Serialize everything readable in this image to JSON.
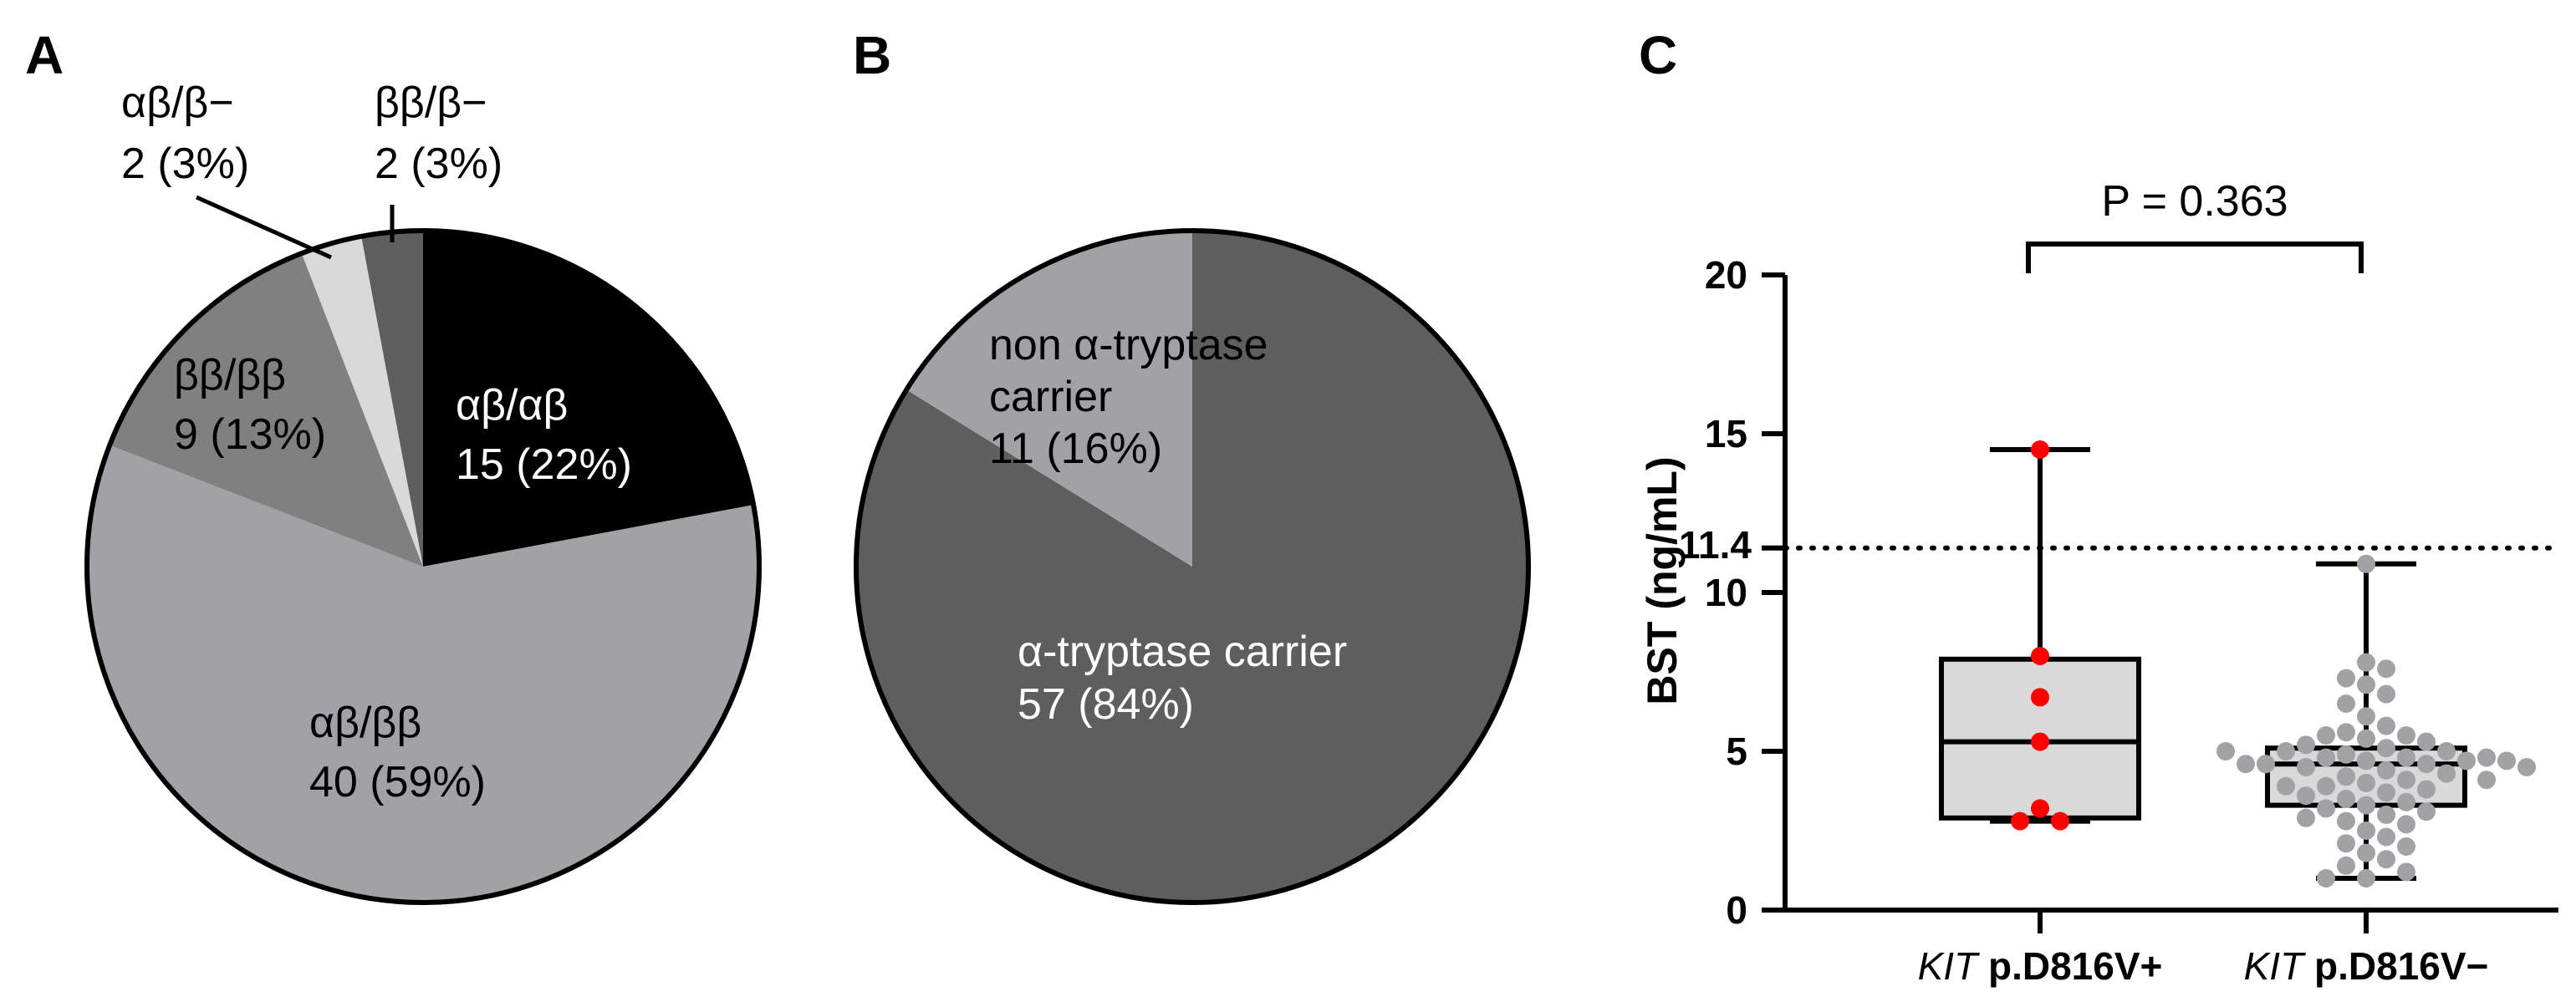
{
  "panels": {
    "a": "A",
    "b": "B",
    "c": "C"
  },
  "chart_data": [
    {
      "type": "pie",
      "panel": "A",
      "slices": [
        {
          "label": "αβ/αβ",
          "count": 15,
          "percent_text": "15 (22%)",
          "color": "#000000",
          "text_color": "#ffffff"
        },
        {
          "label": "αβ/ββ",
          "count": 40,
          "percent_text": "40 (59%)",
          "color": "#a2a2a6",
          "text_color": "#000000"
        },
        {
          "label": "ββ/ββ",
          "count": 9,
          "percent_text": "9 (13%)",
          "color": "#808080",
          "text_color": "#000000"
        },
        {
          "label": "αβ/β−",
          "count": 2,
          "percent_text": "2 (3%)",
          "color": "#d9d9d9",
          "text_color": "#000000"
        },
        {
          "label": "ββ/β−",
          "count": 2,
          "percent_text": "2 (3%)",
          "color": "#5e5e5e",
          "text_color": "#000000"
        }
      ]
    },
    {
      "type": "pie",
      "panel": "B",
      "slices": [
        {
          "label": "α-tryptase carrier",
          "count": 57,
          "percent_text": "57 (84%)",
          "color": "#5e5e5e",
          "text_color": "#ffffff"
        },
        {
          "label": "non α-tryptase carrier",
          "label_lines": [
            "non α-tryptase",
            "carrier"
          ],
          "count": 11,
          "percent_text": "11 (16%)",
          "color": "#a2a2a6",
          "text_color": "#000000"
        }
      ]
    },
    {
      "type": "box",
      "panel": "C",
      "ylabel": "BST (ng/mL)",
      "ylim": [
        0,
        20
      ],
      "yticks": [
        0,
        5,
        10,
        15,
        20
      ],
      "reference_line": {
        "value": 11.4,
        "label": "11.4",
        "style": "dotted"
      },
      "annotation": "P = 0.363",
      "groups": [
        {
          "name_italic": "KIT",
          "name_rest": " p.D816V+",
          "point_color": "#ff0000",
          "box_fill": "#d9d9d9",
          "min": 2.8,
          "q1": 2.9,
          "median": 5.3,
          "q3": 7.9,
          "max": 14.5,
          "points": [
            14.5,
            8.0,
            6.7,
            5.3,
            3.2,
            2.8,
            2.8
          ]
        },
        {
          "name_italic": "KIT",
          "name_rest": " p.D816V−",
          "point_color": "#a2a2a6",
          "box_fill": "#d9d9d9",
          "min": 1.0,
          "q1": 3.3,
          "median": 4.6,
          "q3": 5.1,
          "max": 10.9,
          "points": [
            10.9,
            7.8,
            7.6,
            7.3,
            7.1,
            6.8,
            6.5,
            6.1,
            5.8,
            5.6,
            5.5,
            5.5,
            5.4,
            5.3,
            5.2,
            5.1,
            5.0,
            5.0,
            4.9,
            4.8,
            4.8,
            4.7,
            4.7,
            4.6,
            4.6,
            4.5,
            4.4,
            4.3,
            4.2,
            4.1,
            4.0,
            3.9,
            3.8,
            3.7,
            3.6,
            3.5,
            3.4,
            3.3,
            3.2,
            3.1,
            3.0,
            2.9,
            2.8,
            2.7,
            2.5,
            2.3,
            2.1,
            2.0,
            1.8,
            1.6,
            1.4,
            1.2,
            1.0,
            1.0,
            4.8,
            4.6,
            4.7,
            3.9,
            4.1,
            5.0,
            4.5
          ]
        }
      ]
    }
  ]
}
